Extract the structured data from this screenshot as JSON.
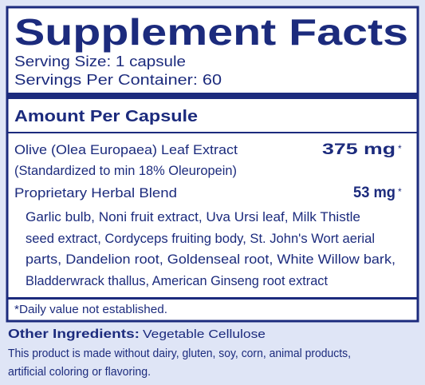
{
  "header": {
    "title": "Supplement Facts",
    "serving_size": "Serving Size: 1 capsule",
    "servings_per_container": "Servings Per Container: 60"
  },
  "amount_header": "Amount Per Capsule",
  "ingredients": [
    {
      "name": "Olive (Olea Europaea) Leaf Extract",
      "amount": "375 mg",
      "mark": "*",
      "note": "(Standardized to min 18% Oleuropein)"
    },
    {
      "name": "Proprietary Herbal Blend",
      "amount": "53 mg",
      "mark": "*",
      "components": [
        "Garlic bulb, Noni fruit extract, Uva Ursi leaf, Milk Thistle",
        "seed extract, Cordyceps fruiting body, St. John's Wort aerial",
        "parts, Dandelion root, Goldenseal root, White Willow bark,",
        "Bladderwrack thallus, American Ginseng root extract"
      ]
    }
  ],
  "footnote": "*Daily value not established.",
  "other_ingredients": {
    "label": "Other Ingredients:",
    "text": "Vegetable Cellulose"
  },
  "disclaimer": [
    "This product is made without dairy, gluten, soy, corn, animal products,",
    "artificial coloring or flavoring."
  ]
}
